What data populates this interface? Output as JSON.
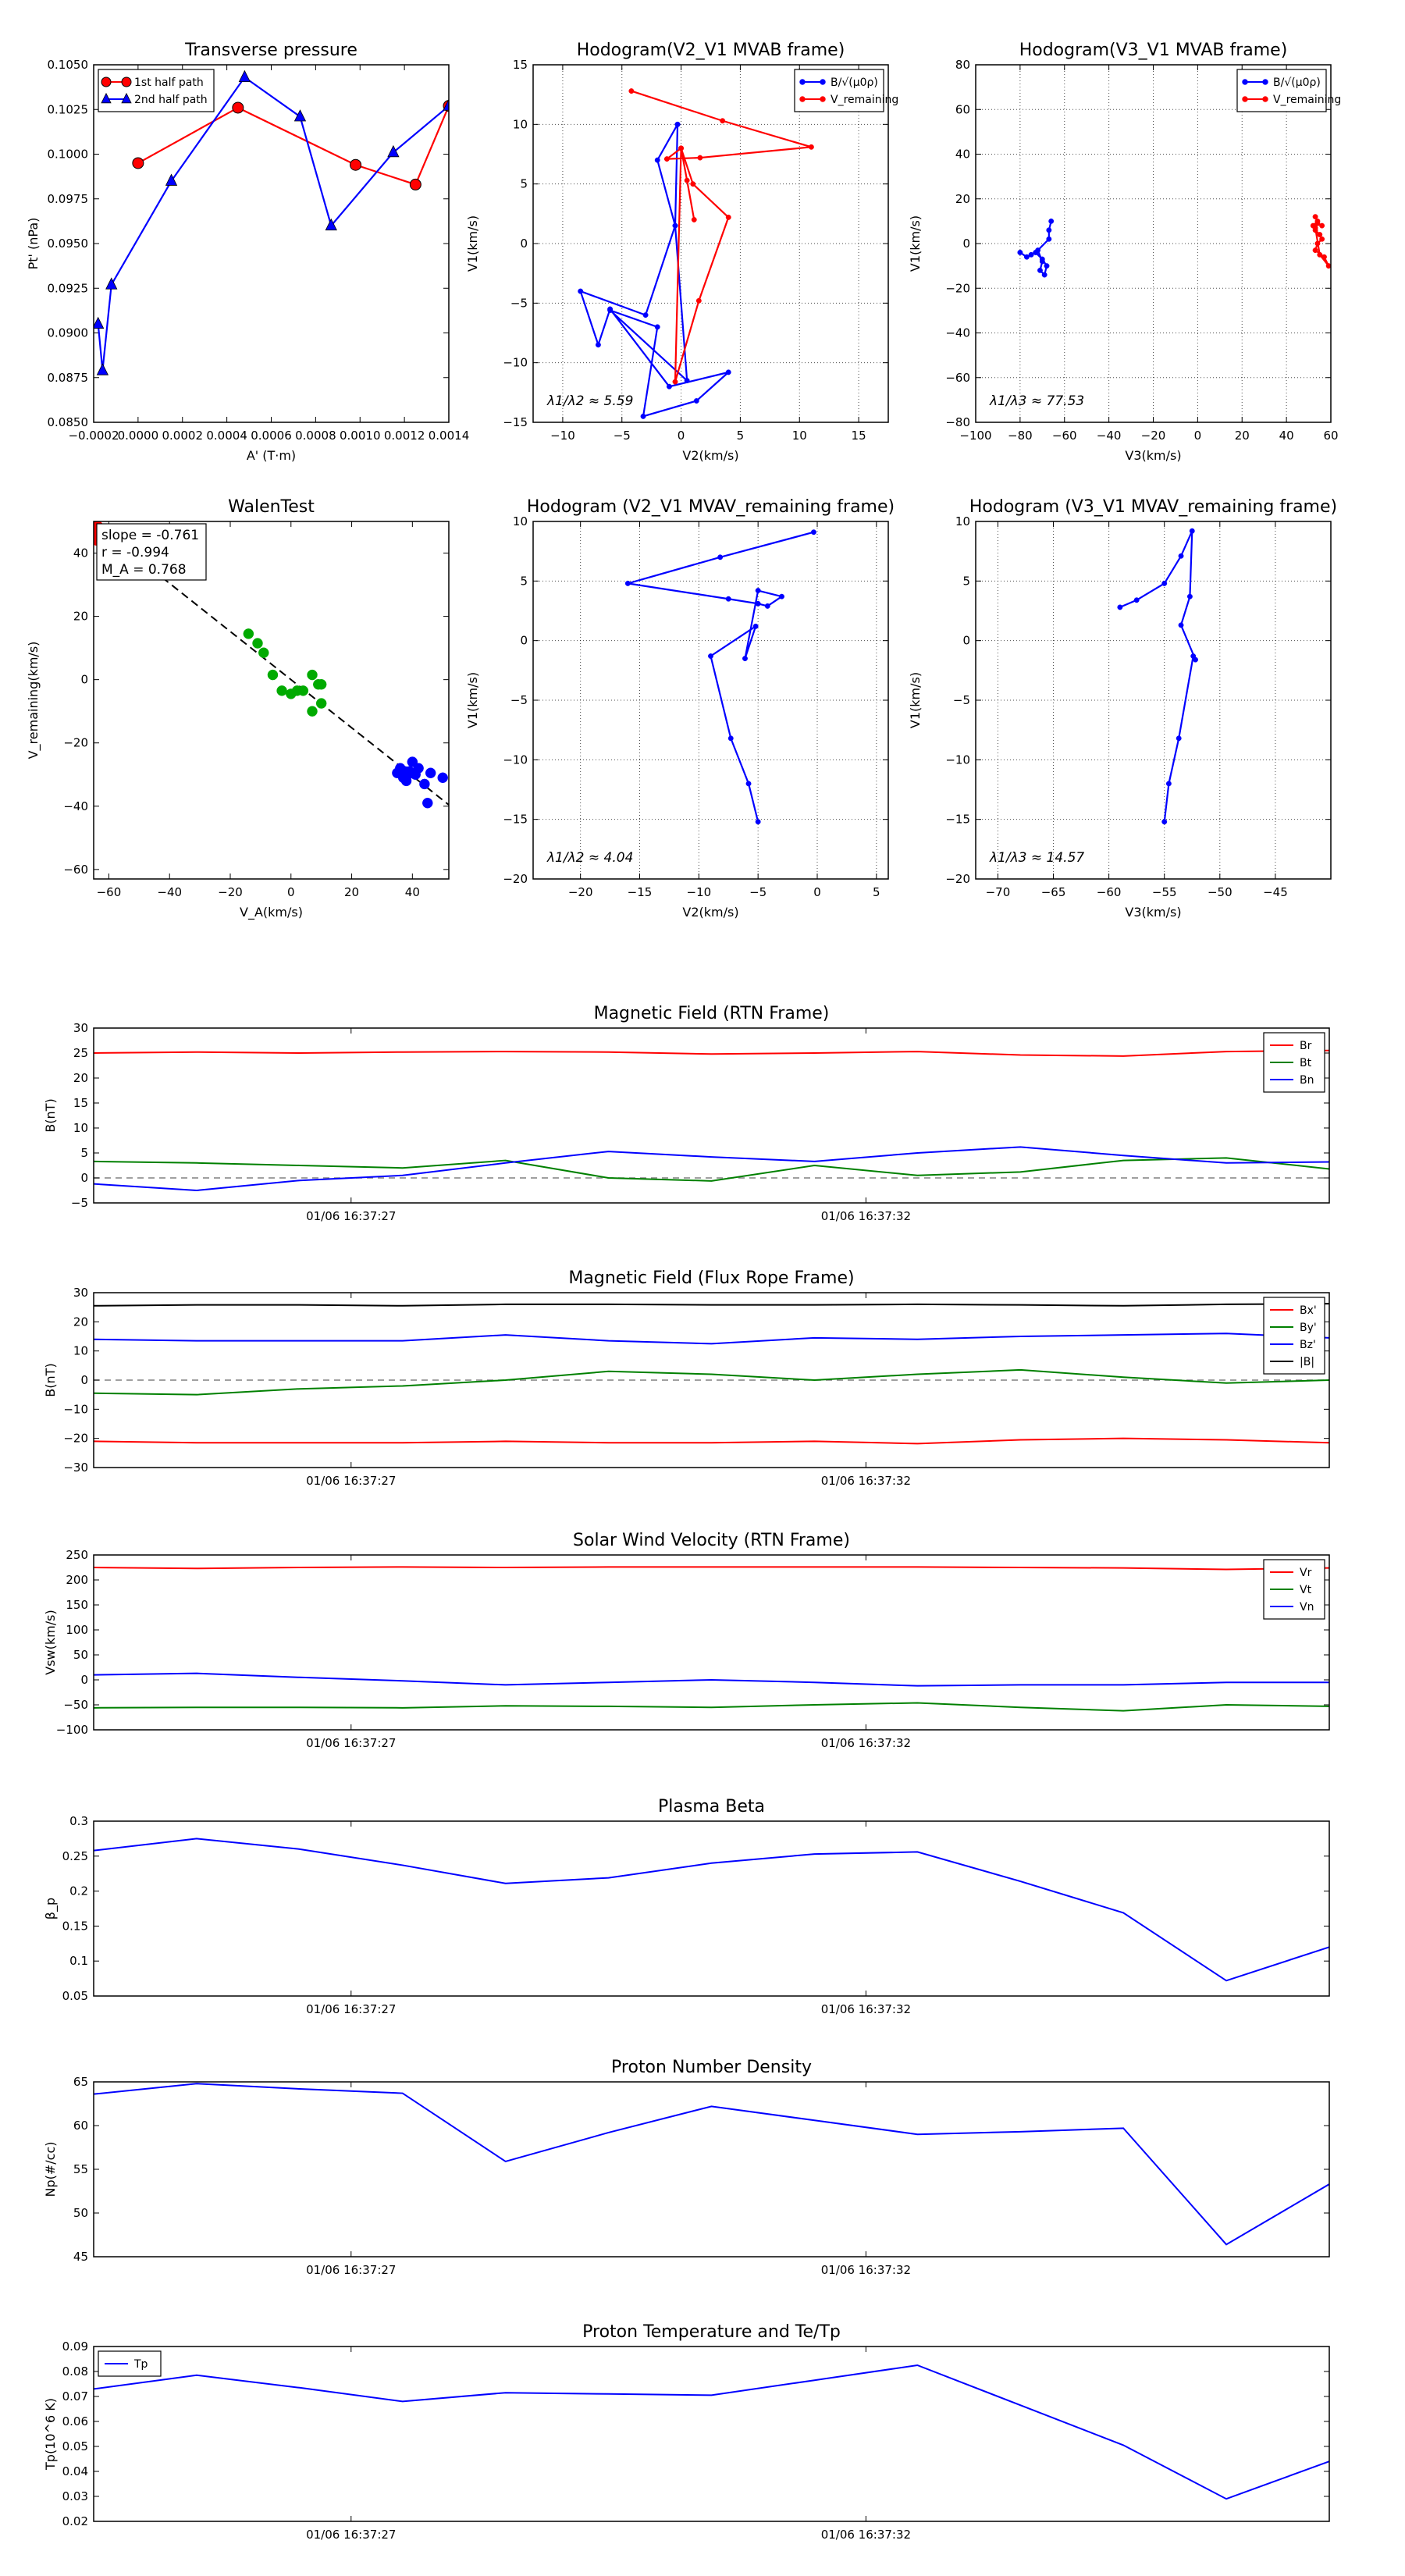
{
  "figure": {
    "name": "Flux rope analysis figure"
  },
  "chart_data": [
    {
      "id": "transverse_pressure",
      "type": "line",
      "title": "Transverse pressure",
      "xlabel": "A' (T·m)",
      "ylabel": "Pt' (nPa)",
      "xlim": [
        -0.0002,
        0.0014
      ],
      "ylim": [
        0.085,
        0.105
      ],
      "xticks": [
        -0.0002,
        0,
        0.0002,
        0.0004,
        0.0006,
        0.0008,
        0.001,
        0.0012,
        0.0014
      ],
      "xtick_labels": [
        "−0.0002",
        "0.0000",
        "0.0002",
        "0.0004",
        "0.0006",
        "0.0008",
        "0.0010",
        "0.0012",
        "0.0014"
      ],
      "yticks": [
        0.085,
        0.0875,
        0.09,
        0.0925,
        0.095,
        0.0975,
        0.1,
        0.1025,
        0.105
      ],
      "ytick_labels": [
        "0.0850",
        "0.0875",
        "0.0900",
        "0.0925",
        "0.0950",
        "0.0975",
        "0.1000",
        "0.1025",
        "0.1050"
      ],
      "grid": false,
      "legend": "upper left",
      "series": [
        {
          "name": "1st half path",
          "color": "#ff0000",
          "marker": "circle",
          "x": [
            0.0,
            0.00045,
            0.00098,
            0.00125,
            0.0014
          ],
          "y": [
            0.0995,
            0.1026,
            0.0994,
            0.0983,
            0.1027
          ]
        },
        {
          "name": "2nd half path",
          "color": "#0000ff",
          "marker": "triangle",
          "x": [
            -0.00018,
            -0.00016,
            -0.00012,
            0.00015,
            0.00048,
            0.00073,
            0.00087,
            0.00115,
            0.0014
          ],
          "y": [
            0.0905,
            0.0879,
            0.0927,
            0.0985,
            0.1043,
            0.1021,
            0.096,
            0.1001,
            0.1027
          ]
        }
      ]
    },
    {
      "id": "hodogram_v2v1_mvab",
      "type": "line",
      "title": "Hodogram(V2_V1 MVAB frame)",
      "xlabel": "V2(km/s)",
      "ylabel": "V1(km/s)",
      "xlim": [
        -12.5,
        17.5
      ],
      "ylim": [
        -15,
        15
      ],
      "xticks": [
        -10,
        -5,
        0,
        5,
        10,
        15
      ],
      "yticks": [
        -15,
        -10,
        -5,
        0,
        5,
        10,
        15
      ],
      "grid": true,
      "legend": "upper right",
      "annotation": "λ1/λ2 ≈ 5.59",
      "series": [
        {
          "name": "B/√(μ0ρ)",
          "color": "#0000ff",
          "x": [
            -0.3,
            -2,
            -0.5,
            -3,
            -8.5,
            -7,
            -6,
            -1,
            4,
            1.3,
            -3.2,
            -2,
            -6,
            0.5,
            -0.5,
            -0.3
          ],
          "y": [
            10,
            7,
            1.5,
            -6,
            -4,
            -8.5,
            -5.5,
            -12,
            -10.8,
            -13.2,
            -14.5,
            -7,
            -5.6,
            -11.5,
            1.5,
            10
          ]
        },
        {
          "name": "V_remaining",
          "color": "#ff0000",
          "x": [
            -4.2,
            3.5,
            11,
            1.6,
            -1.2,
            0,
            1,
            4,
            1.5,
            -0.5,
            0,
            0.5,
            1.1
          ],
          "y": [
            12.8,
            10.3,
            8.1,
            7.2,
            7.1,
            8,
            5,
            2.2,
            -4.8,
            -11.6,
            8,
            5.3,
            2
          ]
        }
      ]
    },
    {
      "id": "hodogram_v3v1_mvab",
      "type": "line",
      "title": "Hodogram(V3_V1 MVAB frame)",
      "xlabel": "V3(km/s)",
      "ylabel": "V1(km/s)",
      "xlim": [
        -100,
        60
      ],
      "ylim": [
        -80,
        80
      ],
      "xticks": [
        -100,
        -80,
        -60,
        -40,
        -20,
        0,
        20,
        40,
        60
      ],
      "yticks": [
        -80,
        -60,
        -40,
        -20,
        0,
        20,
        40,
        60,
        80
      ],
      "grid": true,
      "legend": "upper right",
      "annotation": "λ1/λ3 ≈ 77.53",
      "series": [
        {
          "name": "B/√(μ0ρ)",
          "color": "#0000ff",
          "x": [
            -80,
            -77,
            -75,
            -72,
            -70,
            -71,
            -69,
            -68,
            -70,
            -73,
            -67,
            -67,
            -66
          ],
          "y": [
            -4,
            -6,
            -5,
            -3,
            -8,
            -12,
            -14,
            -10,
            -7,
            -4,
            2,
            6,
            10
          ]
        },
        {
          "name": "V_remaining",
          "color": "#ff0000",
          "x": [
            53,
            54,
            52,
            53,
            55,
            56,
            54,
            53,
            57,
            59,
            55,
            53,
            54,
            56
          ],
          "y": [
            12,
            10,
            8,
            6,
            4,
            2,
            0,
            -3,
            -6,
            -10,
            -5,
            7,
            9,
            8
          ]
        }
      ]
    },
    {
      "id": "walen_test",
      "type": "scatter",
      "title": "WalenTest",
      "xlabel": "V_A(km/s)",
      "ylabel": "V_remaining(km/s)",
      "xlim": [
        -65,
        52
      ],
      "ylim": [
        -63,
        50
      ],
      "xticks": [
        -60,
        -40,
        -20,
        0,
        20,
        40
      ],
      "yticks": [
        -60,
        -40,
        -20,
        0,
        20,
        40
      ],
      "grid": false,
      "annotation_lines": [
        "slope = -0.761",
        "r = -0.994",
        "M_A = 0.768"
      ],
      "fit_line": {
        "slope": -0.761,
        "intercept": 0
      },
      "series": [
        {
          "name": "red",
          "color": "#ff0000",
          "x": [
            -64,
            -64,
            -63.5,
            -64,
            -63
          ],
          "y": [
            49,
            47,
            46,
            44,
            48
          ]
        },
        {
          "name": "green",
          "color": "#00aa00",
          "x": [
            -14,
            -11,
            -9,
            -6,
            -3,
            0,
            2,
            4,
            7,
            7,
            9,
            10,
            10
          ],
          "y": [
            14.5,
            11.5,
            8.5,
            1.5,
            -3.5,
            -4.5,
            -3.5,
            -3.5,
            1.5,
            -10,
            -1.5,
            -7.5,
            -1.5
          ]
        },
        {
          "name": "blue",
          "color": "#0000ff",
          "x": [
            35,
            36,
            37,
            37.5,
            38,
            38.5,
            39,
            40,
            41,
            42,
            44,
            45,
            46,
            50
          ],
          "y": [
            -29.5,
            -28,
            -31,
            -29,
            -32,
            -30,
            -29,
            -26,
            -30,
            -28,
            -33,
            -39,
            -29.5,
            -31
          ]
        }
      ]
    },
    {
      "id": "hodogram_v2v1_mvav",
      "type": "line",
      "title": "Hodogram (V2_V1 MVAV_remaining frame)",
      "xlabel": "V2(km/s)",
      "ylabel": "V1(km/s)",
      "xlim": [
        -24,
        6
      ],
      "ylim": [
        -20,
        10
      ],
      "xticks": [
        -20,
        -15,
        -10,
        -5,
        0,
        5
      ],
      "yticks": [
        -20,
        -15,
        -10,
        -5,
        0,
        5,
        10
      ],
      "grid": true,
      "annotation": "λ1/λ2 ≈ 4.04",
      "series": [
        {
          "name": "V",
          "color": "#0000ff",
          "x": [
            -0.3,
            -8.2,
            -16,
            -7.5,
            -5,
            -4.2,
            -3,
            -5,
            -6.1,
            -5.2,
            -9,
            -7.3,
            -5.8,
            -5
          ],
          "y": [
            9.1,
            7,
            4.8,
            3.5,
            3.1,
            2.9,
            3.7,
            4.2,
            -1.5,
            1.2,
            -1.3,
            -8.2,
            -12,
            -15.2
          ]
        }
      ]
    },
    {
      "id": "hodogram_v3v1_mvav",
      "type": "line",
      "title": "Hodogram (V3_V1 MVAV_remaining frame)",
      "xlabel": "V3(km/s)",
      "ylabel": "V1(km/s)",
      "xlim": [
        -72,
        -40
      ],
      "ylim": [
        -20,
        10
      ],
      "xticks": [
        -70,
        -65,
        -60,
        -55,
        -50,
        -45
      ],
      "yticks": [
        -20,
        -15,
        -10,
        -5,
        0,
        5,
        10
      ],
      "grid": true,
      "annotation": "λ1/λ3 ≈ 14.57",
      "series": [
        {
          "name": "V",
          "color": "#0000ff",
          "x": [
            -59,
            -57.5,
            -55,
            -53.5,
            -52.5,
            -52.7,
            -53.5,
            -52.2,
            -52.4,
            -53.7,
            -54.6,
            -55
          ],
          "y": [
            2.8,
            3.4,
            4.8,
            7.1,
            9.2,
            3.7,
            1.3,
            -1.6,
            -1.3,
            -8.2,
            -12,
            -15.2
          ]
        }
      ]
    },
    {
      "id": "mag_rtn",
      "type": "line",
      "title": "Magnetic Field (RTN Frame)",
      "ylabel": "B(nT)",
      "ylim": [
        -5,
        30
      ],
      "yticks": [
        -5,
        0,
        5,
        10,
        15,
        20,
        25,
        30
      ],
      "xlim": [
        0,
        12
      ],
      "xticks": [
        2.5,
        7.5
      ],
      "xtick_labels": [
        "01/06 16:37:27",
        "01/06 16:37:32"
      ],
      "grid": false,
      "legend": "upper right",
      "zero_line": true,
      "x": [
        0,
        1,
        2,
        3,
        4,
        5,
        6,
        7,
        8,
        9,
        10,
        11,
        12
      ],
      "series": [
        {
          "name": "Br",
          "color": "#ff0000",
          "values": [
            25,
            25.2,
            25,
            25.2,
            25.3,
            25.2,
            24.8,
            25,
            25.3,
            24.6,
            24.4,
            25.3,
            25.5
          ]
        },
        {
          "name": "Bt",
          "color": "#008000",
          "values": [
            3.3,
            3,
            2.5,
            2,
            3.5,
            0,
            -0.6,
            2.5,
            0.5,
            1.2,
            3.5,
            4,
            1.8
          ]
        },
        {
          "name": "Bn",
          "color": "#0000ff",
          "values": [
            -1.2,
            -2.5,
            -0.5,
            0.5,
            3,
            5.3,
            4.2,
            3.3,
            5,
            6.2,
            4.5,
            3,
            3.2
          ]
        }
      ]
    },
    {
      "id": "mag_fluxrope",
      "type": "line",
      "title": "Magnetic Field (Flux Rope Frame)",
      "ylabel": "B(nT)",
      "ylim": [
        -30,
        30
      ],
      "yticks": [
        -30,
        -20,
        -10,
        0,
        10,
        20,
        30
      ],
      "xlim": [
        0,
        12
      ],
      "xticks": [
        2.5,
        7.5
      ],
      "xtick_labels": [
        "01/06 16:37:27",
        "01/06 16:37:32"
      ],
      "grid": false,
      "legend": "upper right",
      "zero_line": true,
      "x": [
        0,
        1,
        2,
        3,
        4,
        5,
        6,
        7,
        8,
        9,
        10,
        11,
        12
      ],
      "series": [
        {
          "name": "Bx'",
          "color": "#ff0000",
          "values": [
            -21,
            -21.5,
            -21.5,
            -21.5,
            -21,
            -21.5,
            -21.5,
            -21,
            -21.8,
            -20.5,
            -20,
            -20.5,
            -21.5
          ]
        },
        {
          "name": "By'",
          "color": "#008000",
          "values": [
            -4.5,
            -5,
            -3,
            -2,
            0,
            3,
            2,
            0,
            2,
            3.5,
            1,
            -1,
            0
          ]
        },
        {
          "name": "Bz'",
          "color": "#0000ff",
          "values": [
            14,
            13.5,
            13.5,
            13.5,
            15.5,
            13.5,
            12.5,
            14.5,
            14,
            15,
            15.5,
            16,
            14.5
          ]
        },
        {
          "name": "|B|",
          "color": "#000000",
          "values": [
            25.5,
            25.8,
            25.8,
            25.5,
            26,
            26,
            25.8,
            25.8,
            26,
            25.8,
            25.5,
            26,
            26.2
          ]
        }
      ]
    },
    {
      "id": "sw_velocity",
      "type": "line",
      "title": "Solar Wind Velocity (RTN Frame)",
      "ylabel": "Vsw(km/s)",
      "ylim": [
        -100,
        250
      ],
      "yticks": [
        -100,
        -50,
        0,
        50,
        100,
        150,
        200,
        250
      ],
      "xlim": [
        0,
        12
      ],
      "xticks": [
        2.5,
        7.5
      ],
      "xtick_labels": [
        "01/06 16:37:27",
        "01/06 16:37:32"
      ],
      "grid": false,
      "legend": "upper right",
      "x": [
        0,
        1,
        2,
        3,
        4,
        5,
        6,
        7,
        8,
        9,
        10,
        11,
        12
      ],
      "series": [
        {
          "name": "Vr",
          "color": "#ff0000",
          "values": [
            225,
            223,
            225,
            226,
            225,
            226,
            226,
            226,
            226,
            225,
            224,
            221,
            224
          ]
        },
        {
          "name": "Vt",
          "color": "#008000",
          "values": [
            -56,
            -55,
            -55,
            -56,
            -52,
            -53,
            -55,
            -50,
            -46,
            -55,
            -62,
            -50,
            -53
          ]
        },
        {
          "name": "Vn",
          "color": "#0000ff",
          "values": [
            10,
            13,
            5,
            -2,
            -10,
            -5,
            0,
            -5,
            -12,
            -10,
            -10,
            -5,
            -5
          ]
        }
      ]
    },
    {
      "id": "plasma_beta",
      "type": "line",
      "title": "Plasma Beta",
      "ylabel": "β_p",
      "ylim": [
        0.05,
        0.3
      ],
      "yticks": [
        0.05,
        0.1,
        0.15,
        0.2,
        0.25,
        0.3
      ],
      "xlim": [
        0,
        12
      ],
      "xticks": [
        2.5,
        7.5
      ],
      "xtick_labels": [
        "01/06 16:37:27",
        "01/06 16:37:32"
      ],
      "grid": false,
      "x": [
        0,
        1,
        2,
        3,
        4,
        5,
        6,
        7,
        8,
        9,
        10,
        11,
        12
      ],
      "series": [
        {
          "name": "beta",
          "color": "#0000ff",
          "values": [
            0.258,
            0.275,
            0.26,
            0.237,
            0.211,
            0.219,
            0.24,
            0.253,
            0.256,
            0.214,
            0.169,
            0.072,
            0.12
          ]
        }
      ]
    },
    {
      "id": "proton_density",
      "type": "line",
      "title": "Proton Number Density",
      "ylabel": "Np(#/cc)",
      "ylim": [
        45,
        65
      ],
      "yticks": [
        45,
        50,
        55,
        60,
        65
      ],
      "xlim": [
        0,
        12
      ],
      "xticks": [
        2.5,
        7.5
      ],
      "xtick_labels": [
        "01/06 16:37:27",
        "01/06 16:37:32"
      ],
      "grid": false,
      "x": [
        0,
        1,
        2,
        3,
        4,
        5,
        6,
        7,
        8,
        9,
        10,
        11,
        12
      ],
      "series": [
        {
          "name": "Np",
          "color": "#0000ff",
          "values": [
            63.6,
            64.8,
            64.2,
            63.7,
            55.9,
            59.2,
            62.2,
            60.6,
            59,
            59.3,
            59.7,
            46.4,
            53.3
          ]
        }
      ]
    },
    {
      "id": "proton_temperature",
      "type": "line",
      "title": "Proton Temperature and Te/Tp",
      "ylabel": "Tp(10^6 K)",
      "ylim": [
        0.02,
        0.09
      ],
      "yticks": [
        0.02,
        0.03,
        0.04,
        0.05,
        0.06,
        0.07,
        0.08,
        0.09
      ],
      "xlim": [
        0,
        12
      ],
      "xticks": [
        2.5,
        7.5
      ],
      "xtick_labels": [
        "01/06 16:37:27",
        "01/06 16:37:32"
      ],
      "grid": false,
      "legend": "upper left",
      "x": [
        0,
        1,
        2,
        3,
        4,
        5,
        6,
        7,
        8,
        9,
        10,
        11,
        12
      ],
      "series": [
        {
          "name": "Tp",
          "color": "#0000ff",
          "values": [
            0.073,
            0.0785,
            0.0735,
            0.068,
            0.0715,
            0.071,
            0.0705,
            0.0765,
            0.0825,
            0.0665,
            0.0505,
            0.029,
            0.044
          ]
        }
      ]
    }
  ]
}
